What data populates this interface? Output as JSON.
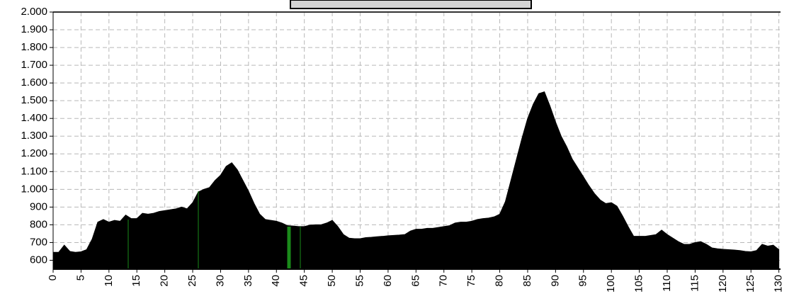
{
  "chart_data": {
    "type": "area",
    "color": "#000000",
    "grid": true,
    "x": [
      0,
      1,
      2,
      3,
      4,
      5,
      6,
      7,
      8,
      9,
      10,
      11,
      12,
      13,
      14,
      15,
      16,
      17,
      18,
      19,
      20,
      21,
      22,
      23,
      24,
      25,
      26,
      27,
      28,
      29,
      30,
      31,
      32,
      33,
      34,
      35,
      36,
      37,
      38,
      39,
      40,
      41,
      42,
      43,
      44,
      45,
      46,
      47,
      48,
      49,
      50,
      51,
      52,
      53,
      54,
      55,
      56,
      57,
      58,
      59,
      60,
      61,
      62,
      63,
      64,
      65,
      66,
      67,
      68,
      69,
      70,
      71,
      72,
      73,
      74,
      75,
      76,
      77,
      78,
      79,
      80,
      81,
      82,
      83,
      84,
      85,
      86,
      87,
      88,
      89,
      90,
      91,
      92,
      93,
      94,
      95,
      96,
      97,
      98,
      99,
      100,
      101,
      102,
      103,
      104,
      105,
      106,
      107,
      108,
      109,
      110,
      111,
      112,
      113,
      114,
      115,
      116,
      117,
      118,
      119,
      120,
      121,
      122,
      123,
      124,
      125,
      126,
      127,
      128,
      129,
      130
    ],
    "values": [
      645,
      645,
      685,
      650,
      645,
      648,
      660,
      720,
      815,
      830,
      815,
      825,
      820,
      855,
      835,
      835,
      865,
      860,
      865,
      875,
      880,
      885,
      890,
      900,
      890,
      925,
      985,
      1000,
      1010,
      1050,
      1080,
      1130,
      1150,
      1110,
      1050,
      990,
      920,
      860,
      830,
      825,
      820,
      810,
      795,
      793,
      790,
      790,
      798,
      800,
      800,
      810,
      825,
      790,
      745,
      725,
      722,
      722,
      728,
      730,
      733,
      735,
      738,
      740,
      742,
      745,
      765,
      775,
      775,
      780,
      780,
      785,
      790,
      795,
      810,
      815,
      815,
      820,
      830,
      835,
      838,
      845,
      860,
      930,
      1050,
      1170,
      1290,
      1400,
      1480,
      1540,
      1550,
      1470,
      1380,
      1300,
      1240,
      1170,
      1120,
      1070,
      1020,
      975,
      940,
      920,
      925,
      905,
      850,
      790,
      735,
      735,
      735,
      740,
      745,
      770,
      745,
      725,
      705,
      690,
      690,
      700,
      705,
      690,
      670,
      665,
      662,
      660,
      658,
      655,
      650,
      648,
      655,
      690,
      680,
      685,
      660
    ],
    "xlim": [
      0,
      130.3
    ],
    "ylim": [
      550,
      2000
    ],
    "xticks": [
      0,
      5,
      10,
      15,
      20,
      25,
      30,
      35,
      40,
      45,
      50,
      55,
      60,
      65,
      70,
      75,
      80,
      85,
      90,
      95,
      100,
      105,
      110,
      115,
      120,
      125,
      130
    ],
    "yticks": [
      600,
      700,
      800,
      900,
      {
        "value": 1000,
        "label": "1.000"
      },
      {
        "value": 1100,
        "label": "1.100"
      },
      {
        "value": 1200,
        "label": "1.200"
      },
      {
        "value": 1300,
        "label": "1.300"
      },
      {
        "value": 1400,
        "label": "1.400"
      },
      {
        "value": 1500,
        "label": "1.500"
      },
      {
        "value": 1600,
        "label": "1.600"
      },
      {
        "value": 1700,
        "label": "1.700"
      },
      {
        "value": 1800,
        "label": "1.800"
      },
      {
        "value": 1900,
        "label": "1.900"
      },
      {
        "value": 2000,
        "label": "2.000"
      }
    ]
  }
}
